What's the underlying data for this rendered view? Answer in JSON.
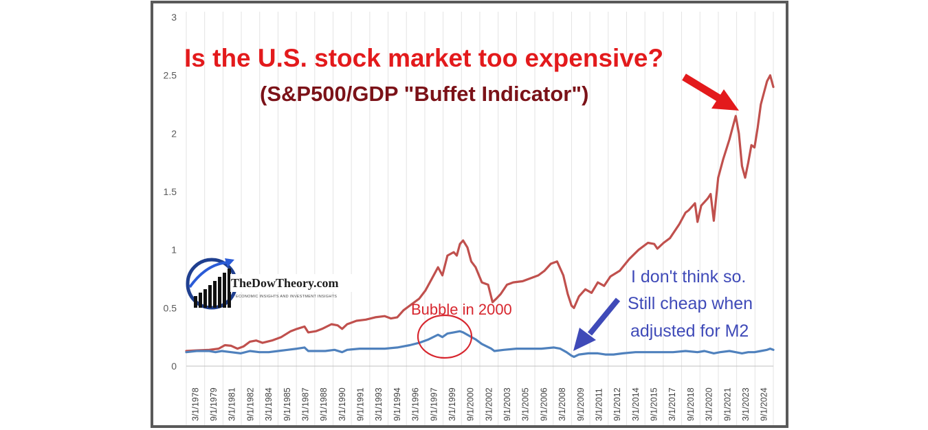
{
  "chart_data": {
    "type": "line",
    "title": "Is the U.S. stock market too expensive?",
    "subtitle": "(S&P500/GDP \"Buffet Indicator\")",
    "xlabel": "",
    "ylabel": "",
    "ylim": [
      0,
      3
    ],
    "yticks": [
      "0",
      "0.5",
      "1",
      "1.5",
      "2",
      "2.5",
      "3"
    ],
    "x_tick_labels": [
      "3/1/1978",
      "9/1/1979",
      "3/1/1981",
      "9/1/1982",
      "3/1/1984",
      "9/1/1985",
      "3/1/1987",
      "9/1/1988",
      "3/1/1990",
      "9/1/1991",
      "3/1/1993",
      "9/1/1994",
      "3/1/1996",
      "9/1/1997",
      "3/1/1999",
      "9/1/2000",
      "3/1/2002",
      "9/1/2003",
      "3/1/2005",
      "9/1/2006",
      "3/1/2008",
      "9/1/2009",
      "3/1/2011",
      "9/1/2012",
      "3/1/2014",
      "9/1/2015",
      "3/1/2017",
      "9/1/2018",
      "3/1/2020",
      "9/1/2021",
      "3/1/2023",
      "9/1/2024"
    ],
    "x_range": [
      1978.17,
      2025.0
    ],
    "grid": "vertical",
    "legend": "none",
    "series": [
      {
        "color": "#c0504d",
        "points": [
          [
            1978.17,
            0.13
          ],
          [
            1979.0,
            0.135
          ],
          [
            1980.0,
            0.14
          ],
          [
            1980.75,
            0.15
          ],
          [
            1981.25,
            0.18
          ],
          [
            1981.75,
            0.175
          ],
          [
            1982.25,
            0.15
          ],
          [
            1982.75,
            0.17
          ],
          [
            1983.25,
            0.21
          ],
          [
            1983.75,
            0.22
          ],
          [
            1984.25,
            0.2
          ],
          [
            1985.0,
            0.22
          ],
          [
            1985.75,
            0.25
          ],
          [
            1986.5,
            0.3
          ],
          [
            1987.0,
            0.32
          ],
          [
            1987.6,
            0.34
          ],
          [
            1987.9,
            0.29
          ],
          [
            1988.5,
            0.3
          ],
          [
            1989.0,
            0.32
          ],
          [
            1989.75,
            0.36
          ],
          [
            1990.25,
            0.35
          ],
          [
            1990.6,
            0.32
          ],
          [
            1991.0,
            0.36
          ],
          [
            1991.75,
            0.39
          ],
          [
            1992.5,
            0.4
          ],
          [
            1993.25,
            0.42
          ],
          [
            1994.0,
            0.43
          ],
          [
            1994.5,
            0.41
          ],
          [
            1995.0,
            0.42
          ],
          [
            1995.5,
            0.48
          ],
          [
            1996.0,
            0.52
          ],
          [
            1996.75,
            0.58
          ],
          [
            1997.25,
            0.65
          ],
          [
            1997.75,
            0.75
          ],
          [
            1998.25,
            0.85
          ],
          [
            1998.6,
            0.78
          ],
          [
            1999.0,
            0.95
          ],
          [
            1999.5,
            0.98
          ],
          [
            1999.75,
            0.95
          ],
          [
            2000.0,
            1.05
          ],
          [
            2000.25,
            1.08
          ],
          [
            2000.6,
            1.02
          ],
          [
            2000.9,
            0.9
          ],
          [
            2001.25,
            0.85
          ],
          [
            2001.75,
            0.72
          ],
          [
            2002.25,
            0.7
          ],
          [
            2002.6,
            0.55
          ],
          [
            2002.9,
            0.58
          ],
          [
            2003.25,
            0.62
          ],
          [
            2003.75,
            0.7
          ],
          [
            2004.25,
            0.72
          ],
          [
            2005.0,
            0.73
          ],
          [
            2005.5,
            0.75
          ],
          [
            2006.25,
            0.78
          ],
          [
            2006.75,
            0.82
          ],
          [
            2007.25,
            0.88
          ],
          [
            2007.75,
            0.9
          ],
          [
            2008.25,
            0.78
          ],
          [
            2008.6,
            0.62
          ],
          [
            2008.9,
            0.52
          ],
          [
            2009.1,
            0.5
          ],
          [
            2009.5,
            0.6
          ],
          [
            2010.0,
            0.66
          ],
          [
            2010.5,
            0.63
          ],
          [
            2011.0,
            0.72
          ],
          [
            2011.5,
            0.69
          ],
          [
            2012.0,
            0.77
          ],
          [
            2012.75,
            0.82
          ],
          [
            2013.5,
            0.92
          ],
          [
            2014.25,
            1.0
          ],
          [
            2015.0,
            1.06
          ],
          [
            2015.5,
            1.05
          ],
          [
            2015.75,
            1.01
          ],
          [
            2016.25,
            1.06
          ],
          [
            2016.75,
            1.1
          ],
          [
            2017.5,
            1.22
          ],
          [
            2018.0,
            1.32
          ],
          [
            2018.25,
            1.34
          ],
          [
            2018.75,
            1.4
          ],
          [
            2018.95,
            1.24
          ],
          [
            2019.25,
            1.38
          ],
          [
            2019.75,
            1.44
          ],
          [
            2020.0,
            1.48
          ],
          [
            2020.25,
            1.25
          ],
          [
            2020.6,
            1.62
          ],
          [
            2021.0,
            1.78
          ],
          [
            2021.5,
            1.95
          ],
          [
            2021.75,
            2.05
          ],
          [
            2022.0,
            2.15
          ],
          [
            2022.25,
            2.0
          ],
          [
            2022.5,
            1.72
          ],
          [
            2022.75,
            1.62
          ],
          [
            2023.0,
            1.75
          ],
          [
            2023.25,
            1.9
          ],
          [
            2023.5,
            1.88
          ],
          [
            2023.75,
            2.05
          ],
          [
            2024.0,
            2.25
          ],
          [
            2024.25,
            2.35
          ],
          [
            2024.5,
            2.45
          ],
          [
            2024.75,
            2.5
          ],
          [
            2025.0,
            2.4
          ]
        ]
      },
      {
        "color": "#4f81bd",
        "points": [
          [
            1978.17,
            0.12
          ],
          [
            1979.0,
            0.13
          ],
          [
            1980.0,
            0.13
          ],
          [
            1980.5,
            0.12
          ],
          [
            1981.0,
            0.13
          ],
          [
            1981.75,
            0.12
          ],
          [
            1982.5,
            0.11
          ],
          [
            1983.25,
            0.13
          ],
          [
            1984.0,
            0.12
          ],
          [
            1984.75,
            0.12
          ],
          [
            1985.5,
            0.13
          ],
          [
            1986.25,
            0.14
          ],
          [
            1987.0,
            0.15
          ],
          [
            1987.6,
            0.16
          ],
          [
            1987.9,
            0.13
          ],
          [
            1988.5,
            0.13
          ],
          [
            1989.25,
            0.13
          ],
          [
            1990.0,
            0.14
          ],
          [
            1990.6,
            0.12
          ],
          [
            1991.0,
            0.14
          ],
          [
            1992.0,
            0.15
          ],
          [
            1993.0,
            0.15
          ],
          [
            1994.0,
            0.15
          ],
          [
            1995.0,
            0.16
          ],
          [
            1996.0,
            0.18
          ],
          [
            1996.75,
            0.2
          ],
          [
            1997.5,
            0.23
          ],
          [
            1998.25,
            0.27
          ],
          [
            1998.6,
            0.25
          ],
          [
            1999.0,
            0.28
          ],
          [
            1999.5,
            0.29
          ],
          [
            2000.0,
            0.3
          ],
          [
            2000.25,
            0.29
          ],
          [
            2000.75,
            0.26
          ],
          [
            2001.25,
            0.23
          ],
          [
            2001.75,
            0.19
          ],
          [
            2002.5,
            0.15
          ],
          [
            2002.75,
            0.13
          ],
          [
            2003.5,
            0.14
          ],
          [
            2004.5,
            0.15
          ],
          [
            2005.5,
            0.15
          ],
          [
            2006.5,
            0.15
          ],
          [
            2007.5,
            0.16
          ],
          [
            2008.0,
            0.15
          ],
          [
            2008.5,
            0.12
          ],
          [
            2008.9,
            0.09
          ],
          [
            2009.1,
            0.08
          ],
          [
            2009.5,
            0.1
          ],
          [
            2010.25,
            0.11
          ],
          [
            2011.0,
            0.11
          ],
          [
            2011.6,
            0.1
          ],
          [
            2012.25,
            0.1
          ],
          [
            2013.0,
            0.11
          ],
          [
            2014.0,
            0.12
          ],
          [
            2015.0,
            0.12
          ],
          [
            2016.0,
            0.12
          ],
          [
            2017.0,
            0.12
          ],
          [
            2018.0,
            0.13
          ],
          [
            2018.95,
            0.12
          ],
          [
            2019.5,
            0.13
          ],
          [
            2020.25,
            0.11
          ],
          [
            2020.75,
            0.12
          ],
          [
            2021.5,
            0.13
          ],
          [
            2022.0,
            0.12
          ],
          [
            2022.5,
            0.11
          ],
          [
            2023.0,
            0.12
          ],
          [
            2023.5,
            0.12
          ],
          [
            2024.0,
            0.13
          ],
          [
            2024.5,
            0.14
          ],
          [
            2024.75,
            0.15
          ],
          [
            2025.0,
            0.14
          ]
        ]
      }
    ],
    "annotations": {
      "bubble_label": "Bubble in 2000",
      "note_lines": [
        "I don't think so.",
        "Still cheap when",
        "adjusted for M2"
      ]
    }
  },
  "logo": {
    "name": "TheDowTheory.com",
    "tagline": "ECONOMIC INSIGHTS AND INVESTMENT INSIGHTS"
  },
  "colors": {
    "title": "#e31a1c",
    "subtitle": "#7b1218",
    "red_series": "#c0504d",
    "blue_series": "#4f81bd",
    "bubble_circle": "#d7262e",
    "note": "#3f4ab8",
    "arrow_red": "#e31a1c",
    "arrow_blue": "#3f4ab8",
    "frame": "#595959"
  }
}
